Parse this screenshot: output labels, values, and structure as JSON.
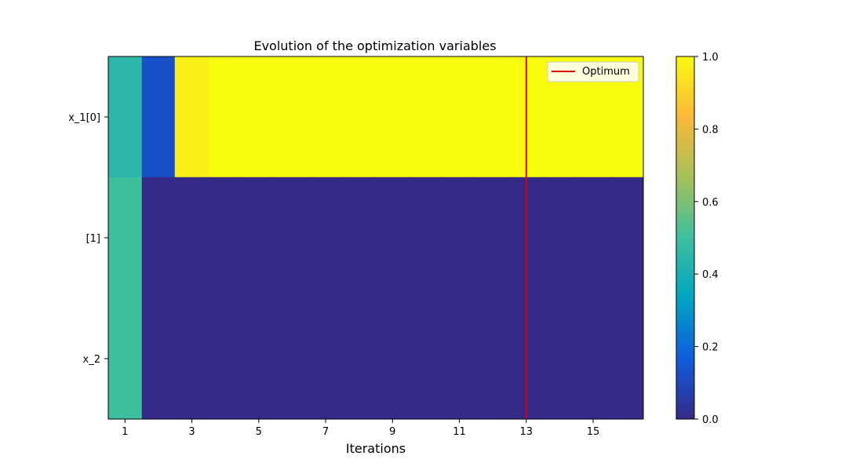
{
  "chart_data": {
    "type": "heatmap",
    "title": "Evolution of the optimization variables",
    "xlabel": "Iterations",
    "ylabel": "",
    "x": [
      1,
      2,
      3,
      4,
      5,
      6,
      7,
      8,
      9,
      10,
      11,
      12,
      13,
      14,
      15,
      16
    ],
    "xticks": [
      1,
      3,
      5,
      7,
      9,
      11,
      13,
      15
    ],
    "xlim": [
      0.5,
      16.5
    ],
    "rows": [
      "x_1[0]",
      "[1]",
      "x_2"
    ],
    "values": [
      [
        0.45,
        0.13,
        0.97,
        1.0,
        1.0,
        1.0,
        1.0,
        1.0,
        1.0,
        1.0,
        1.0,
        1.0,
        1.0,
        1.0,
        1.0,
        1.0
      ],
      [
        0.5,
        0.0,
        0.0,
        0.0,
        0.0,
        0.0,
        0.0,
        0.0,
        0.0,
        0.0,
        0.0,
        0.0,
        0.0,
        0.0,
        0.0,
        0.0
      ],
      [
        0.5,
        0.0,
        0.0,
        0.0,
        0.0,
        0.0,
        0.0,
        0.0,
        0.0,
        0.0,
        0.0,
        0.0,
        0.0,
        0.0,
        0.0,
        0.0
      ]
    ],
    "row_heights": [
      1,
      1,
      1
    ],
    "optimum": {
      "x": 13,
      "label": "Optimum",
      "color": "#e00000"
    },
    "colorbar": {
      "range": [
        0,
        1
      ],
      "ticks": [
        "0.0",
        "0.2",
        "0.4",
        "0.6",
        "0.8",
        "1.0"
      ],
      "colormap": "parula-like",
      "stops": [
        "#352a87",
        "#0f5cdd",
        "#00a5c2",
        "#3dbf9e",
        "#a6c05a",
        "#fcb838",
        "#f9fb0e"
      ]
    },
    "legend_position": "top-right",
    "grid": false
  }
}
